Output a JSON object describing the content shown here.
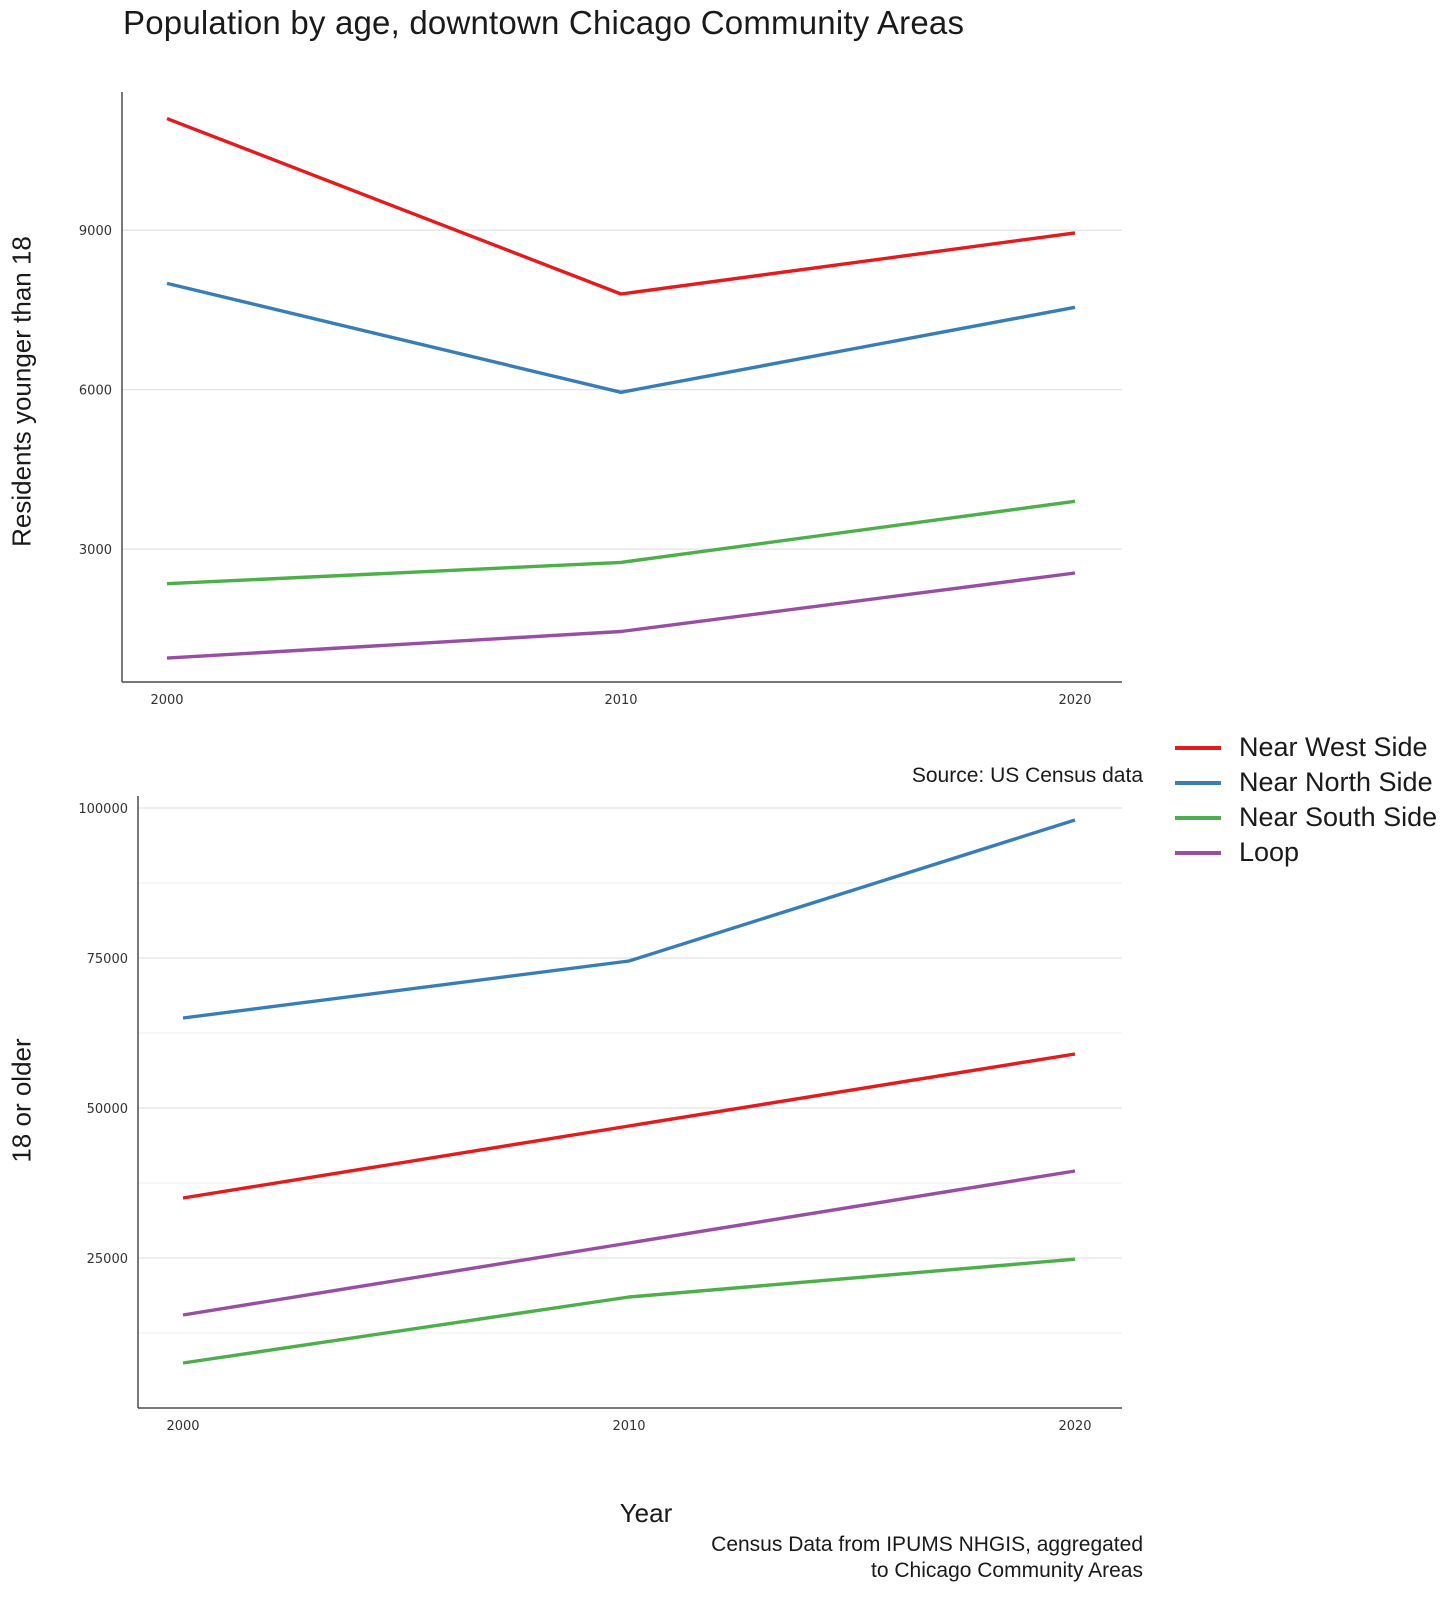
{
  "chart_data": {
    "type": "line",
    "title": "Population by age, downtown Chicago Community Areas",
    "xlabel": "Year",
    "x": [
      2000,
      2010,
      2020
    ],
    "source": "Source: US Census data",
    "caption": [
      "Census Data from IPUMS NHGIS, aggregated",
      "to Chicago Community Areas"
    ],
    "legend": [
      {
        "name": "Near West Side",
        "color": "#e41a1c"
      },
      {
        "name": "Near North Side",
        "color": "#377eb8"
      },
      {
        "name": "Near South Side",
        "color": "#4daf4a"
      },
      {
        "name": "Loop",
        "color": "#984ea3"
      }
    ],
    "panels": [
      {
        "ylabel": "Residents younger than 18",
        "ylim": [
          500,
          11600
        ],
        "yticks": [
          3000,
          6000,
          9000
        ],
        "series": [
          {
            "name": "Near West Side",
            "values": [
              11100,
              7800,
              8950
            ]
          },
          {
            "name": "Near North Side",
            "values": [
              8000,
              5950,
              7550
            ]
          },
          {
            "name": "Near South Side",
            "values": [
              2350,
              2750,
              3900
            ]
          },
          {
            "name": "Loop",
            "values": [
              950,
              1450,
              2550
            ]
          }
        ]
      },
      {
        "ylabel": "18 or older",
        "ylim": [
          0,
          102000
        ],
        "yticks": [
          25000,
          50000,
          75000,
          100000
        ],
        "series": [
          {
            "name": "Near West Side",
            "values": [
              35000,
              47000,
              59000
            ]
          },
          {
            "name": "Near North Side",
            "values": [
              65000,
              74500,
              98000
            ]
          },
          {
            "name": "Near South Side",
            "values": [
              7500,
              18500,
              24800
            ]
          },
          {
            "name": "Loop",
            "values": [
              15500,
              27500,
              39500
            ]
          }
        ]
      }
    ]
  }
}
